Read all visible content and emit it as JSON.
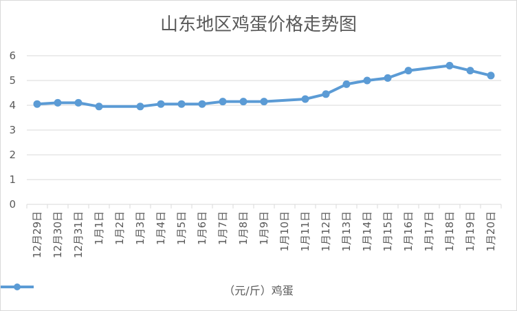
{
  "chart_data": {
    "type": "line",
    "title": "山东地区鸡蛋价格走势图",
    "categories": [
      "12月29日",
      "12月30日",
      "12月31日",
      "1月1日",
      "1月2日",
      "1月3日",
      "1月4日",
      "1月5日",
      "1月6日",
      "1月7日",
      "1月8日",
      "1月9日",
      "1月10日",
      "1月11日",
      "1月12日",
      "1月13日",
      "1月14日",
      "1月15日",
      "1月16日",
      "1月17日",
      "1月18日",
      "1月19日",
      "1月20日"
    ],
    "series": [
      {
        "name": "（元/斤）鸡蛋",
        "color": "#5b9bd5",
        "values": [
          4.05,
          4.1,
          4.1,
          3.95,
          null,
          3.95,
          4.05,
          4.05,
          4.05,
          4.15,
          4.15,
          4.15,
          null,
          4.25,
          4.45,
          4.85,
          5.0,
          5.1,
          5.4,
          null,
          5.6,
          5.4,
          5.2
        ]
      }
    ],
    "ylim": [
      0,
      6
    ],
    "yticks": [
      "0",
      "1",
      "2",
      "3",
      "4",
      "5",
      "6"
    ],
    "grid": true,
    "legend": "bottom"
  }
}
